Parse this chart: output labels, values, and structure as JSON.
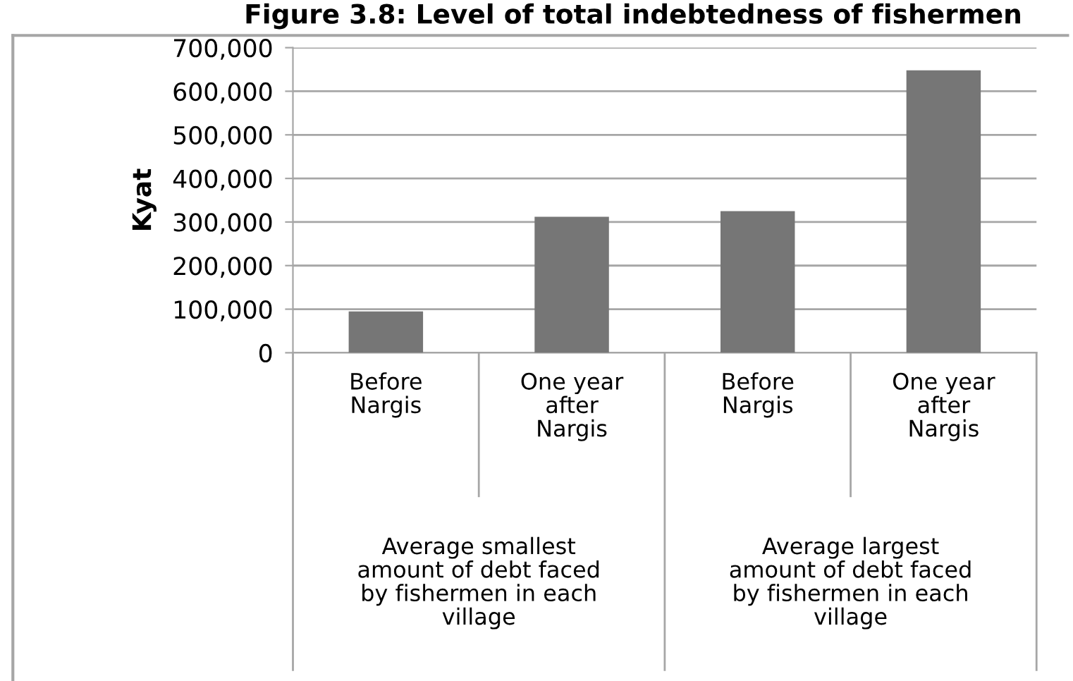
{
  "chart_data": {
    "type": "bar",
    "title": "Figure 3.8: Level of total indebtedness of fishermen",
    "ylabel": "Kyat",
    "categories": [
      "Before\nNargis",
      "One year\nafter\nNargis",
      "Before\nNargis",
      "One year\nafter\nNargis"
    ],
    "values": [
      95000,
      312000,
      325000,
      648000
    ],
    "color": "#767676",
    "ylim": [
      0,
      700000
    ],
    "yticks": [
      {
        "value": 0,
        "label": "0"
      },
      {
        "value": 100000,
        "label": "100,000"
      },
      {
        "value": 200000,
        "label": "200,000"
      },
      {
        "value": 300000,
        "label": "300,000"
      },
      {
        "value": 400000,
        "label": "400,000"
      },
      {
        "value": 500000,
        "label": "500,000"
      },
      {
        "value": 600000,
        "label": "600,000"
      },
      {
        "value": 700000,
        "label": "700,000"
      }
    ],
    "grid": "y",
    "annotations": [
      "Average smallest\namount of debt faced\nby fishermen in each\nvillage",
      "Average largest\namount of debt faced\nby fishermen in each\nvillage"
    ]
  }
}
